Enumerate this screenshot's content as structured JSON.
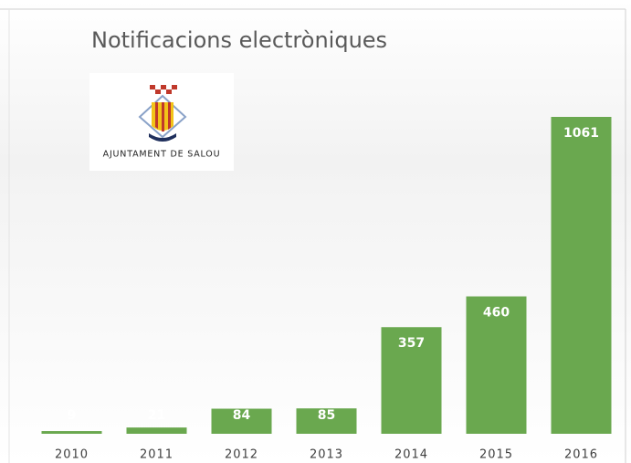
{
  "chart_data": {
    "type": "bar",
    "title": "Notificacions electròniques",
    "categories": [
      "2010",
      "2011",
      "2012",
      "2013",
      "2014",
      "2015",
      "2016"
    ],
    "values": [
      9,
      21,
      84,
      85,
      357,
      460,
      1061
    ],
    "color": "#6aa84f"
  },
  "logo": {
    "label": "AJUNTAMENT DE SALOU"
  }
}
